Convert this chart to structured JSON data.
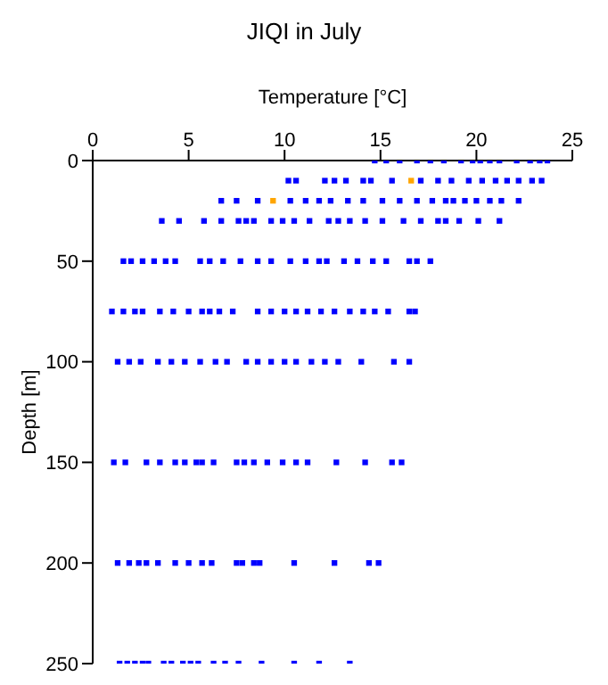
{
  "chart_data": {
    "type": "scatter",
    "title": "JIQI in July",
    "xlabel": "Temperature [°C]",
    "ylabel": "Depth [m]",
    "xlim": [
      0,
      25
    ],
    "xticks": [
      0,
      5,
      10,
      15,
      20,
      25
    ],
    "ylim": [
      250,
      0
    ],
    "yticks": [
      0,
      50,
      100,
      150,
      200,
      250
    ],
    "marker": "square",
    "grid": false,
    "legend": false,
    "series": [
      {
        "color": "#0000ff",
        "x": [
          14.7,
          15.3,
          16.0,
          16.9,
          17.6,
          18.3,
          19.2,
          19.8,
          20.2,
          20.7,
          21.2,
          22.1,
          22.8,
          23.3,
          23.7,
          10.2,
          10.6,
          12.1,
          12.6,
          13.2,
          14.1,
          14.5,
          15.6,
          17.1,
          18.0,
          18.7,
          19.6,
          20.3,
          21.0,
          21.6,
          22.2,
          22.9,
          23.4,
          6.7,
          7.5,
          8.6,
          10.3,
          11.1,
          11.8,
          12.4,
          13.3,
          14.1,
          15.1,
          16.0,
          16.9,
          17.7,
          18.4,
          18.8,
          19.4,
          20.0,
          20.7,
          21.3,
          22.2,
          3.6,
          4.5,
          5.8,
          6.7,
          7.6,
          8.0,
          8.4,
          9.3,
          9.9,
          10.5,
          11.3,
          12.3,
          12.8,
          13.4,
          14.2,
          15.1,
          16.2,
          17.1,
          18.0,
          18.4,
          19.1,
          20.1,
          21.2,
          1.6,
          2.0,
          2.6,
          3.2,
          3.8,
          4.3,
          5.6,
          6.1,
          6.8,
          7.7,
          8.6,
          9.3,
          10.3,
          11.1,
          11.8,
          12.2,
          13.1,
          13.8,
          14.6,
          15.3,
          16.5,
          16.9,
          17.6,
          1.0,
          1.6,
          2.2,
          2.6,
          3.5,
          4.2,
          5.0,
          5.7,
          6.1,
          6.6,
          7.3,
          8.6,
          9.3,
          10.0,
          10.6,
          11.2,
          11.9,
          12.6,
          13.4,
          14.1,
          14.7,
          15.4,
          16.5,
          16.8,
          1.3,
          1.9,
          2.5,
          3.4,
          4.1,
          4.8,
          5.6,
          6.4,
          7.0,
          8.0,
          8.6,
          9.3,
          10.0,
          10.6,
          11.4,
          12.1,
          12.8,
          14.0,
          15.7,
          16.5,
          1.1,
          1.7,
          2.8,
          3.5,
          4.3,
          4.8,
          5.4,
          5.7,
          6.3,
          7.5,
          7.9,
          8.4,
          9.1,
          9.9,
          10.6,
          11.2,
          12.7,
          14.2,
          15.6,
          16.1,
          1.3,
          1.9,
          2.4,
          2.8,
          3.4,
          4.3,
          5.0,
          5.7,
          6.2,
          7.5,
          7.8,
          8.4,
          8.7,
          10.5,
          12.6,
          14.4,
          14.9,
          1.4,
          1.8,
          2.2,
          2.6,
          2.9,
          3.7,
          4.1,
          4.7,
          5.1,
          5.5,
          6.3,
          6.9,
          7.6,
          8.8,
          10.5,
          11.8,
          13.4
        ],
        "values": [
          0,
          0,
          0,
          0,
          0,
          0,
          0,
          0,
          0,
          0,
          0,
          0,
          0,
          0,
          0,
          10,
          10,
          10,
          10,
          10,
          10,
          10,
          10,
          10,
          10,
          10,
          10,
          10,
          10,
          10,
          10,
          10,
          10,
          20,
          20,
          20,
          20,
          20,
          20,
          20,
          20,
          20,
          20,
          20,
          20,
          20,
          20,
          20,
          20,
          20,
          20,
          20,
          20,
          30,
          30,
          30,
          30,
          30,
          30,
          30,
          30,
          30,
          30,
          30,
          30,
          30,
          30,
          30,
          30,
          30,
          30,
          30,
          30,
          30,
          30,
          30,
          50,
          50,
          50,
          50,
          50,
          50,
          50,
          50,
          50,
          50,
          50,
          50,
          50,
          50,
          50,
          50,
          50,
          50,
          50,
          50,
          50,
          50,
          50,
          75,
          75,
          75,
          75,
          75,
          75,
          75,
          75,
          75,
          75,
          75,
          75,
          75,
          75,
          75,
          75,
          75,
          75,
          75,
          75,
          75,
          75,
          75,
          75,
          100,
          100,
          100,
          100,
          100,
          100,
          100,
          100,
          100,
          100,
          100,
          100,
          100,
          100,
          100,
          100,
          100,
          100,
          100,
          100,
          150,
          150,
          150,
          150,
          150,
          150,
          150,
          150,
          150,
          150,
          150,
          150,
          150,
          150,
          150,
          150,
          150,
          150,
          150,
          150,
          200,
          200,
          200,
          200,
          200,
          200,
          200,
          200,
          200,
          200,
          200,
          200,
          200,
          200,
          200,
          200,
          200,
          250,
          250,
          250,
          250,
          250,
          250,
          250,
          250,
          250,
          250,
          250,
          250,
          250,
          250,
          250,
          250,
          250
        ]
      },
      {
        "color": "#ffa500",
        "x": [
          16.6,
          9.4
        ],
        "values": [
          10,
          20
        ]
      }
    ]
  }
}
